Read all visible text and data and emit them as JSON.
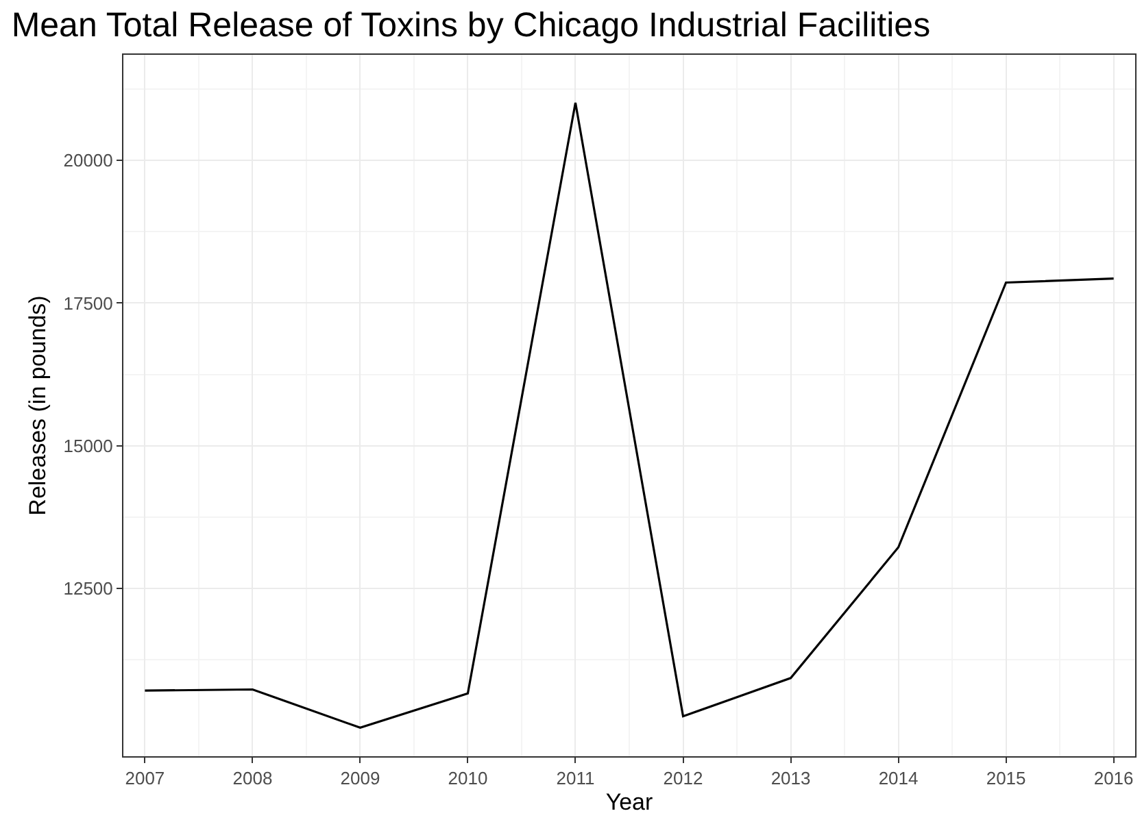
{
  "chart_data": {
    "type": "line",
    "title": "Mean Total Release of Toxins by Chicago Industrial Facilities",
    "xlabel": "Year",
    "ylabel": "Releases (in pounds)",
    "x": [
      2007,
      2008,
      2009,
      2010,
      2011,
      2012,
      2013,
      2014,
      2015,
      2016
    ],
    "series": [
      {
        "color": "#000000",
        "values": [
          10710,
          10730,
          10060,
          10660,
          21010,
          10260,
          10930,
          13220,
          17860,
          17930
        ]
      }
    ],
    "xlim": [
      2006.8,
      2016.2
    ],
    "xticks": [
      2007,
      2008,
      2009,
      2010,
      2011,
      2012,
      2013,
      2014,
      2015,
      2016
    ],
    "ylim": [
      9560,
      21850
    ],
    "yticks": [
      12500,
      15000,
      17500,
      20000
    ],
    "grid": true,
    "marker": "none",
    "line_style": "solid"
  }
}
